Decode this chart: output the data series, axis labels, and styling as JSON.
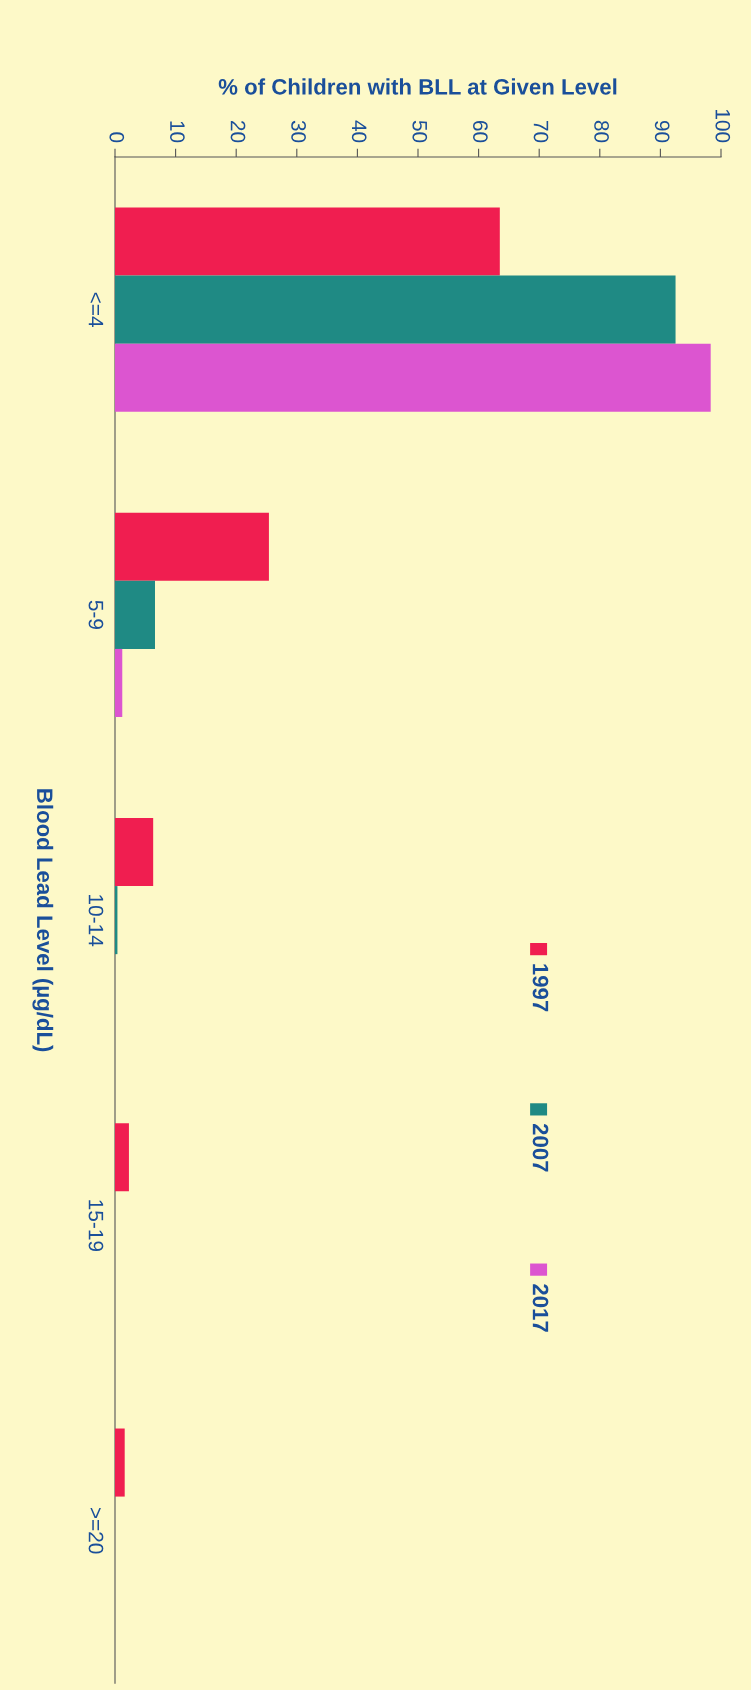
{
  "chart_data": {
    "type": "bar",
    "orientation": "horizontal",
    "xlabel": "% of Children with BLL at Given Level",
    "ylabel": "Blood Lead Level (µg/dL)",
    "categories": [
      "<=4",
      "5-9",
      "10-14",
      "15-19",
      ">=20"
    ],
    "series": [
      {
        "name": "1997",
        "color": "#f01e50",
        "values": [
          63.5,
          25.4,
          6.3,
          2.3,
          1.6
        ]
      },
      {
        "name": "2007",
        "color": "#1f8a84",
        "values": [
          92.5,
          6.6,
          0.4,
          null,
          null
        ]
      },
      {
        "name": "2017",
        "color": "#dc55d0",
        "values": [
          98.3,
          1.2,
          0,
          0,
          0
        ]
      }
    ],
    "xlim": [
      0,
      100
    ],
    "xticks": [
      0,
      10,
      20,
      30,
      40,
      50,
      60,
      70,
      80,
      90,
      100
    ],
    "grid": false,
    "legend": "right"
  }
}
